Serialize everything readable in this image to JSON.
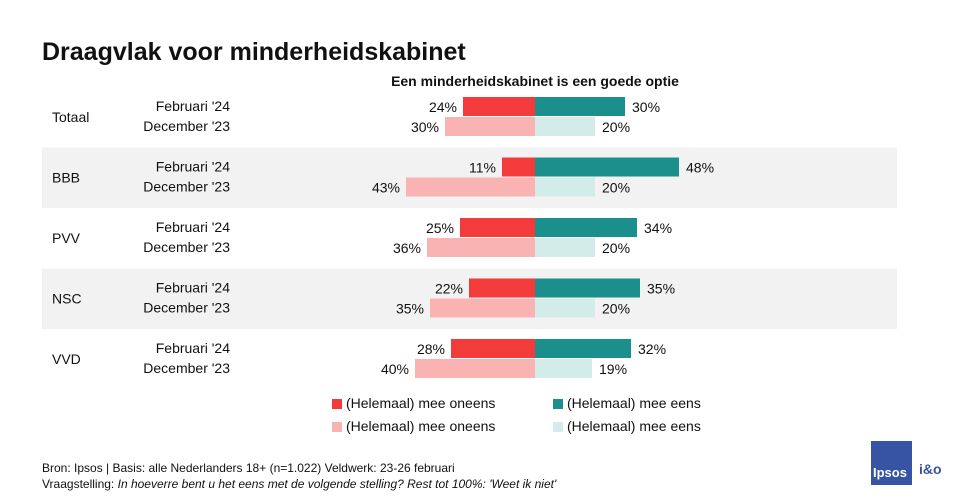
{
  "title": "Draagvlak voor minderheidskabinet",
  "subtitle": "Een minderheidskabinet is een goede optie",
  "colors": {
    "disagree_feb": "#f33b3b",
    "agree_feb": "#1a8f8c",
    "disagree_dec": "#f9b3b3",
    "agree_dec": "#d3ece9",
    "band": "#f2f2f2"
  },
  "chart_data": {
    "type": "bar",
    "orientation": "horizontal-diverging",
    "groups": [
      "Totaal",
      "BBB",
      "PVV",
      "NSC",
      "VVD"
    ],
    "periods": [
      "Februari '24",
      "December '23"
    ],
    "series": [
      {
        "name": "(Helemaal) mee oneens",
        "period": "Februari '24",
        "direction": "left",
        "values": [
          24,
          11,
          25,
          22,
          28
        ]
      },
      {
        "name": "(Helemaal) mee eens",
        "period": "Februari '24",
        "direction": "right",
        "values": [
          30,
          48,
          34,
          35,
          32
        ]
      },
      {
        "name": "(Helemaal) mee oneens",
        "period": "December '23",
        "direction": "left",
        "values": [
          30,
          43,
          36,
          35,
          40
        ]
      },
      {
        "name": "(Helemaal) mee eens",
        "period": "December '23",
        "direction": "right",
        "values": [
          20,
          20,
          20,
          20,
          19
        ]
      }
    ],
    "value_suffix": "%",
    "legend_position": "bottom"
  },
  "legend": [
    {
      "label": "(Helemaal) mee oneens",
      "color": "#f33b3b"
    },
    {
      "label": "(Helemaal) mee eens",
      "color": "#1a8f8c"
    },
    {
      "label": "(Helemaal) mee oneens",
      "color": "#f9b3b3"
    },
    {
      "label": "(Helemaal) mee eens",
      "color": "#d3ece9"
    }
  ],
  "footer": {
    "source": "Bron: Ipsos | Basis: alle Nederlanders  18+ (n=1.022) Veldwerk: 23-26 februari",
    "question_prefix": "Vraagstelling: ",
    "question_text": "In hoeverre  bent u het eens met de volgende  stelling? Rest tot 100%:",
    "question_suffix": " 'Weet ik niet'"
  },
  "logo": {
    "brand": "Ipsos",
    "partner": "i&o"
  }
}
